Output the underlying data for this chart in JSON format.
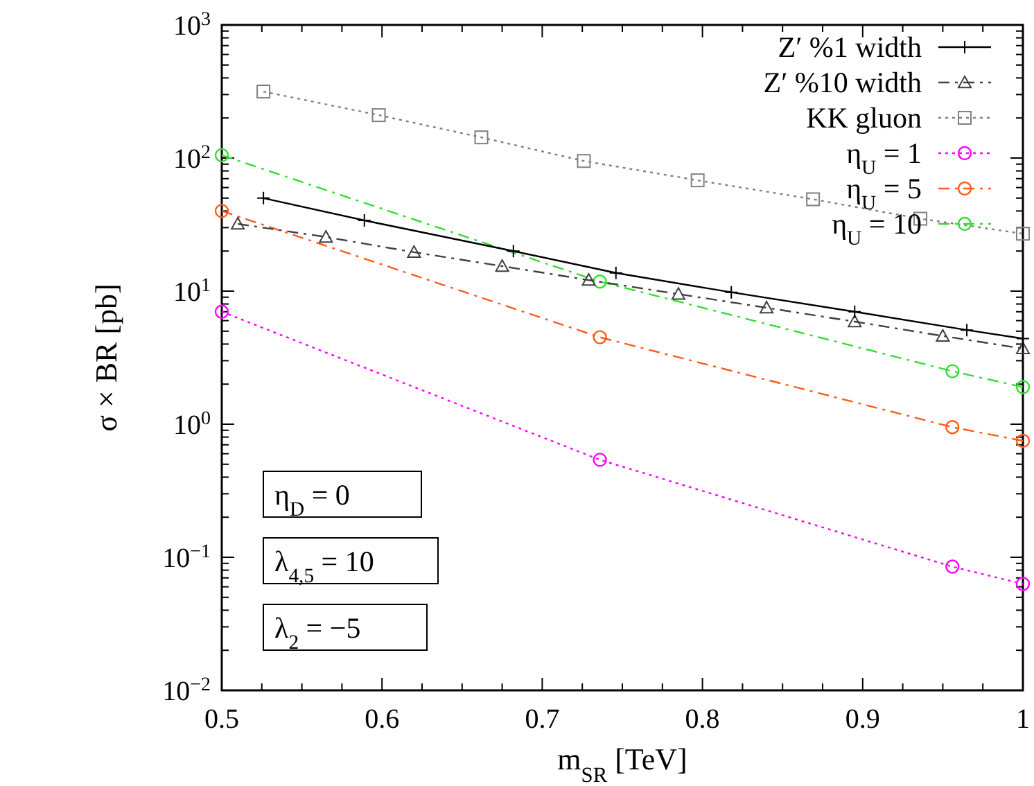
{
  "chart_data": {
    "type": "line",
    "xlabel": "m$_{S}$$_{R}$ [TeV]",
    "ylabel": "σ × BR [pb]",
    "log": "y",
    "legend": "top right",
    "grid": false,
    "xlim": [
      0.5,
      1
    ],
    "ylim": [
      0.01,
      1000
    ],
    "xticks": [
      0.5,
      {
        "value": 0.525,
        "label": null
      },
      {
        "value": 0.55,
        "label": null
      },
      {
        "value": 0.575,
        "label": null
      },
      0.6,
      {
        "value": 0.625,
        "label": null
      },
      {
        "value": 0.65,
        "label": null
      },
      {
        "value": 0.675,
        "label": null
      },
      0.7,
      {
        "value": 0.725,
        "label": null
      },
      {
        "value": 0.75,
        "label": null
      },
      {
        "value": 0.775,
        "label": null
      },
      0.8,
      {
        "value": 0.825,
        "label": null
      },
      {
        "value": 0.85,
        "label": null
      },
      {
        "value": 0.875,
        "label": null
      },
      0.9,
      {
        "value": 0.925,
        "label": null
      },
      {
        "value": 0.95,
        "label": null
      },
      {
        "value": 0.975,
        "label": null
      },
      1
    ],
    "yticks": [
      {
        "value": 0.01,
        "label": "10$^{−2}$"
      },
      {
        "value": 0.02,
        "label": null
      },
      {
        "value": 0.03,
        "label": null
      },
      {
        "value": 0.04,
        "label": null
      },
      {
        "value": 0.05,
        "label": null
      },
      {
        "value": 0.06,
        "label": null
      },
      {
        "value": 0.07,
        "label": null
      },
      {
        "value": 0.08,
        "label": null
      },
      {
        "value": 0.09,
        "label": null
      },
      {
        "value": 0.1,
        "label": "10$^{−1}$"
      },
      {
        "value": 0.2,
        "label": null
      },
      {
        "value": 0.3,
        "label": null
      },
      {
        "value": 0.4,
        "label": null
      },
      {
        "value": 0.5,
        "label": null
      },
      {
        "value": 0.6,
        "label": null
      },
      {
        "value": 0.7,
        "label": null
      },
      {
        "value": 0.8,
        "label": null
      },
      {
        "value": 0.9,
        "label": null
      },
      {
        "value": 1,
        "label": "10$^{0}$"
      },
      {
        "value": 2,
        "label": null
      },
      {
        "value": 3,
        "label": null
      },
      {
        "value": 4,
        "label": null
      },
      {
        "value": 5,
        "label": null
      },
      {
        "value": 6,
        "label": null
      },
      {
        "value": 7,
        "label": null
      },
      {
        "value": 8,
        "label": null
      },
      {
        "value": 9,
        "label": null
      },
      {
        "value": 10,
        "label": "10$^{1}$"
      },
      {
        "value": 20,
        "label": null
      },
      {
        "value": 30,
        "label": null
      },
      {
        "value": 40,
        "label": null
      },
      {
        "value": 50,
        "label": null
      },
      {
        "value": 60,
        "label": null
      },
      {
        "value": 70,
        "label": null
      },
      {
        "value": 80,
        "label": null
      },
      {
        "value": 90,
        "label": null
      },
      {
        "value": 100,
        "label": "10$^{2}$"
      },
      {
        "value": 200,
        "label": null
      },
      {
        "value": 300,
        "label": null
      },
      {
        "value": 400,
        "label": null
      },
      {
        "value": 500,
        "label": null
      },
      {
        "value": 600,
        "label": null
      },
      {
        "value": 700,
        "label": null
      },
      {
        "value": 800,
        "label": null
      },
      {
        "value": 900,
        "label": null
      },
      {
        "value": 1000,
        "label": "10$^{3}$"
      }
    ],
    "series": [
      {
        "name": "Z′ %1 width",
        "color": "#000000",
        "marker": "cross",
        "line_style": "solid",
        "x": [
          0.526,
          0.589,
          0.682,
          0.746,
          0.818,
          0.895,
          0.965,
          1
        ],
        "values": [
          50,
          34,
          20,
          13.7,
          9.8,
          7.0,
          5.1,
          4.4
        ]
      },
      {
        "name": "Z′ %10 width",
        "color": "#404040",
        "marker": "triangle",
        "line_style": "dashed",
        "x": [
          0.51,
          0.565,
          0.62,
          0.675,
          0.729,
          0.785,
          0.84,
          0.895,
          0.95,
          1
        ],
        "values": [
          32,
          25.5,
          19.6,
          15.4,
          12.1,
          9.5,
          7.5,
          5.9,
          4.6,
          3.7
        ]
      },
      {
        "name": "KK gluon",
        "color": "#808080",
        "marker": "square",
        "line_style": "dotted",
        "x": [
          0.526,
          0.598,
          0.662,
          0.726,
          0.797,
          0.869,
          0.936,
          1
        ],
        "values": [
          316,
          210,
          143,
          95,
          68,
          49,
          35,
          27
        ]
      },
      {
        "name": "η$_{U}$ = 1",
        "color": "#ff00ff",
        "marker": "circle",
        "line_style": "dotted",
        "x": [
          0.5,
          0.736,
          0.956,
          1
        ],
        "values": [
          7.0,
          0.54,
          0.085,
          0.063
        ]
      },
      {
        "name": "η$_{U}$ = 5",
        "color": "#ff5a1a",
        "marker": "circle",
        "line_style": "dashed",
        "x": [
          0.5,
          0.736,
          0.956,
          1
        ],
        "values": [
          40,
          4.5,
          0.95,
          0.75
        ]
      },
      {
        "name": "η$_{U}$ = 10",
        "color": "#33dd33",
        "marker": "circle",
        "line_style": "dashed",
        "x": [
          0.5,
          0.736,
          0.956,
          1
        ],
        "values": [
          105,
          11.8,
          2.5,
          1.9
        ]
      }
    ],
    "annotations": [
      "η$_{D}$ = 0",
      "λ$_{4,5}$ = 10",
      "λ$_{2}$ = −5"
    ]
  }
}
